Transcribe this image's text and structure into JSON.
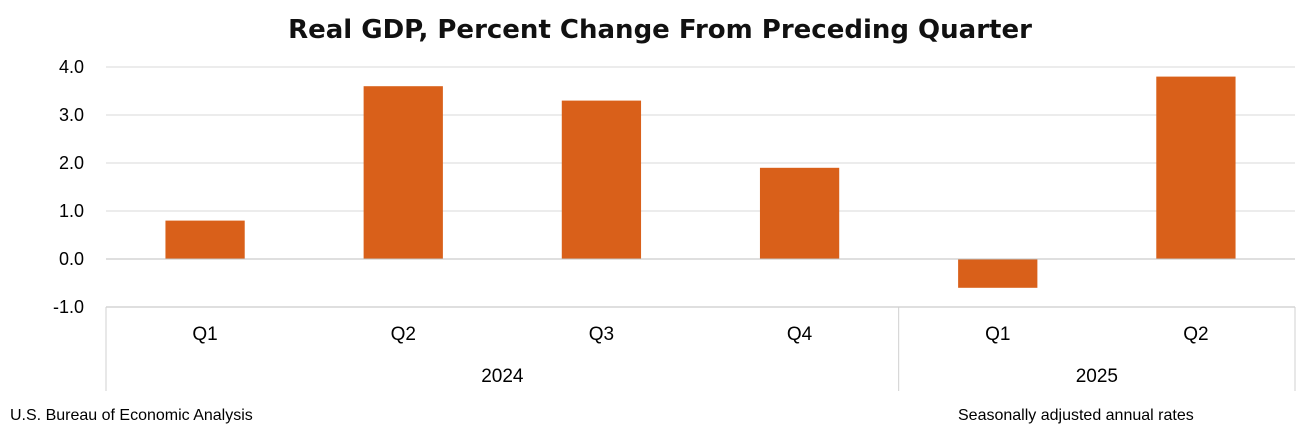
{
  "chart_data": {
    "type": "bar",
    "title": "Real GDP, Percent Change From Preceding Quarter",
    "categories": [
      "Q1",
      "Q2",
      "Q3",
      "Q4",
      "Q1",
      "Q2"
    ],
    "groups": [
      {
        "label": "2024",
        "categories": [
          "Q1",
          "Q2",
          "Q3",
          "Q4"
        ]
      },
      {
        "label": "2025",
        "categories": [
          "Q1",
          "Q2"
        ]
      }
    ],
    "values": [
      0.8,
      3.6,
      3.3,
      1.9,
      -0.6,
      3.8
    ],
    "ylim": [
      -1.0,
      4.0
    ],
    "yticks": [
      "4.0",
      "3.0",
      "2.0",
      "1.0",
      "0.0",
      "-1.0"
    ],
    "xlabel": "",
    "ylabel": "",
    "grid": true,
    "bar_color": "#D9601A"
  },
  "footer": {
    "source": "U.S. Bureau of Economic Analysis",
    "note": "Seasonally adjusted annual rates"
  }
}
